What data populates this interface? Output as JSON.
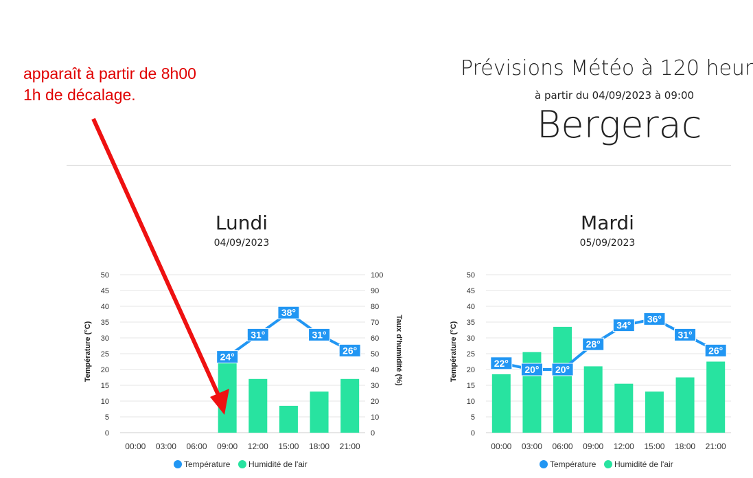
{
  "annotation": {
    "line1": "apparaît à partir de 8h00",
    "line2": "1h de décalage."
  },
  "header": {
    "title": "Prévisions Météo à 120 heur",
    "subtitle": "à partir du 04/09/2023 à 09:00",
    "city": "Bergerac"
  },
  "colors": {
    "temperature": "#2196f3",
    "humidity": "#28e3a0",
    "annotation": "#e00000",
    "arrow": "#ee1111"
  },
  "chart_data": [
    {
      "type": "bar",
      "day": "Lundi",
      "date": "04/09/2023",
      "categories": [
        "00:00",
        "03:00",
        "06:00",
        "09:00",
        "12:00",
        "15:00",
        "18:00",
        "21:00"
      ],
      "y_left_ticks": [
        "0",
        "5",
        "10",
        "15",
        "20",
        "25",
        "30",
        "35",
        "40",
        "45",
        "50"
      ],
      "y_right_ticks": [
        "0",
        "10",
        "20",
        "30",
        "40",
        "50",
        "60",
        "70",
        "80",
        "90",
        "100"
      ],
      "ylabel": "Température (°C)",
      "y2label": "Taux d'humidité (%)",
      "ylim": [
        0,
        50
      ],
      "y2lim": [
        0,
        100
      ],
      "series": [
        {
          "name": "Humidité de l'air",
          "type": "bar",
          "axis": "right",
          "values": [
            null,
            null,
            null,
            47,
            34,
            17,
            26,
            34
          ]
        },
        {
          "name": "Température",
          "type": "line",
          "axis": "left",
          "values": [
            null,
            null,
            null,
            24,
            31,
            38,
            31,
            26
          ],
          "labels": [
            "",
            "",
            "",
            "24°",
            "31°",
            "38°",
            "31°",
            "26°"
          ]
        }
      ],
      "legend": [
        "Température",
        "Humidité de l'air"
      ]
    },
    {
      "type": "bar",
      "day": "Mardi",
      "date": "05/09/2023",
      "categories": [
        "00:00",
        "03:00",
        "06:00",
        "09:00",
        "12:00",
        "15:00",
        "18:00",
        "21:00"
      ],
      "y_left_ticks": [
        "0",
        "5",
        "10",
        "15",
        "20",
        "25",
        "30",
        "35",
        "40",
        "45",
        "50"
      ],
      "ylabel": "Température (°C)",
      "ylim": [
        0,
        50
      ],
      "y2lim": [
        0,
        100
      ],
      "series": [
        {
          "name": "Humidité de l'air",
          "type": "bar",
          "axis": "right",
          "values": [
            37,
            51,
            67,
            42,
            31,
            26,
            35,
            45
          ]
        },
        {
          "name": "Température",
          "type": "line",
          "axis": "left",
          "values": [
            22,
            20,
            20,
            28,
            34,
            36,
            31,
            26
          ],
          "labels": [
            "22°",
            "20°",
            "20°",
            "28°",
            "34°",
            "36°",
            "31°",
            "26°"
          ]
        }
      ],
      "legend": [
        "Température",
        "Humidité de l'air"
      ]
    }
  ]
}
